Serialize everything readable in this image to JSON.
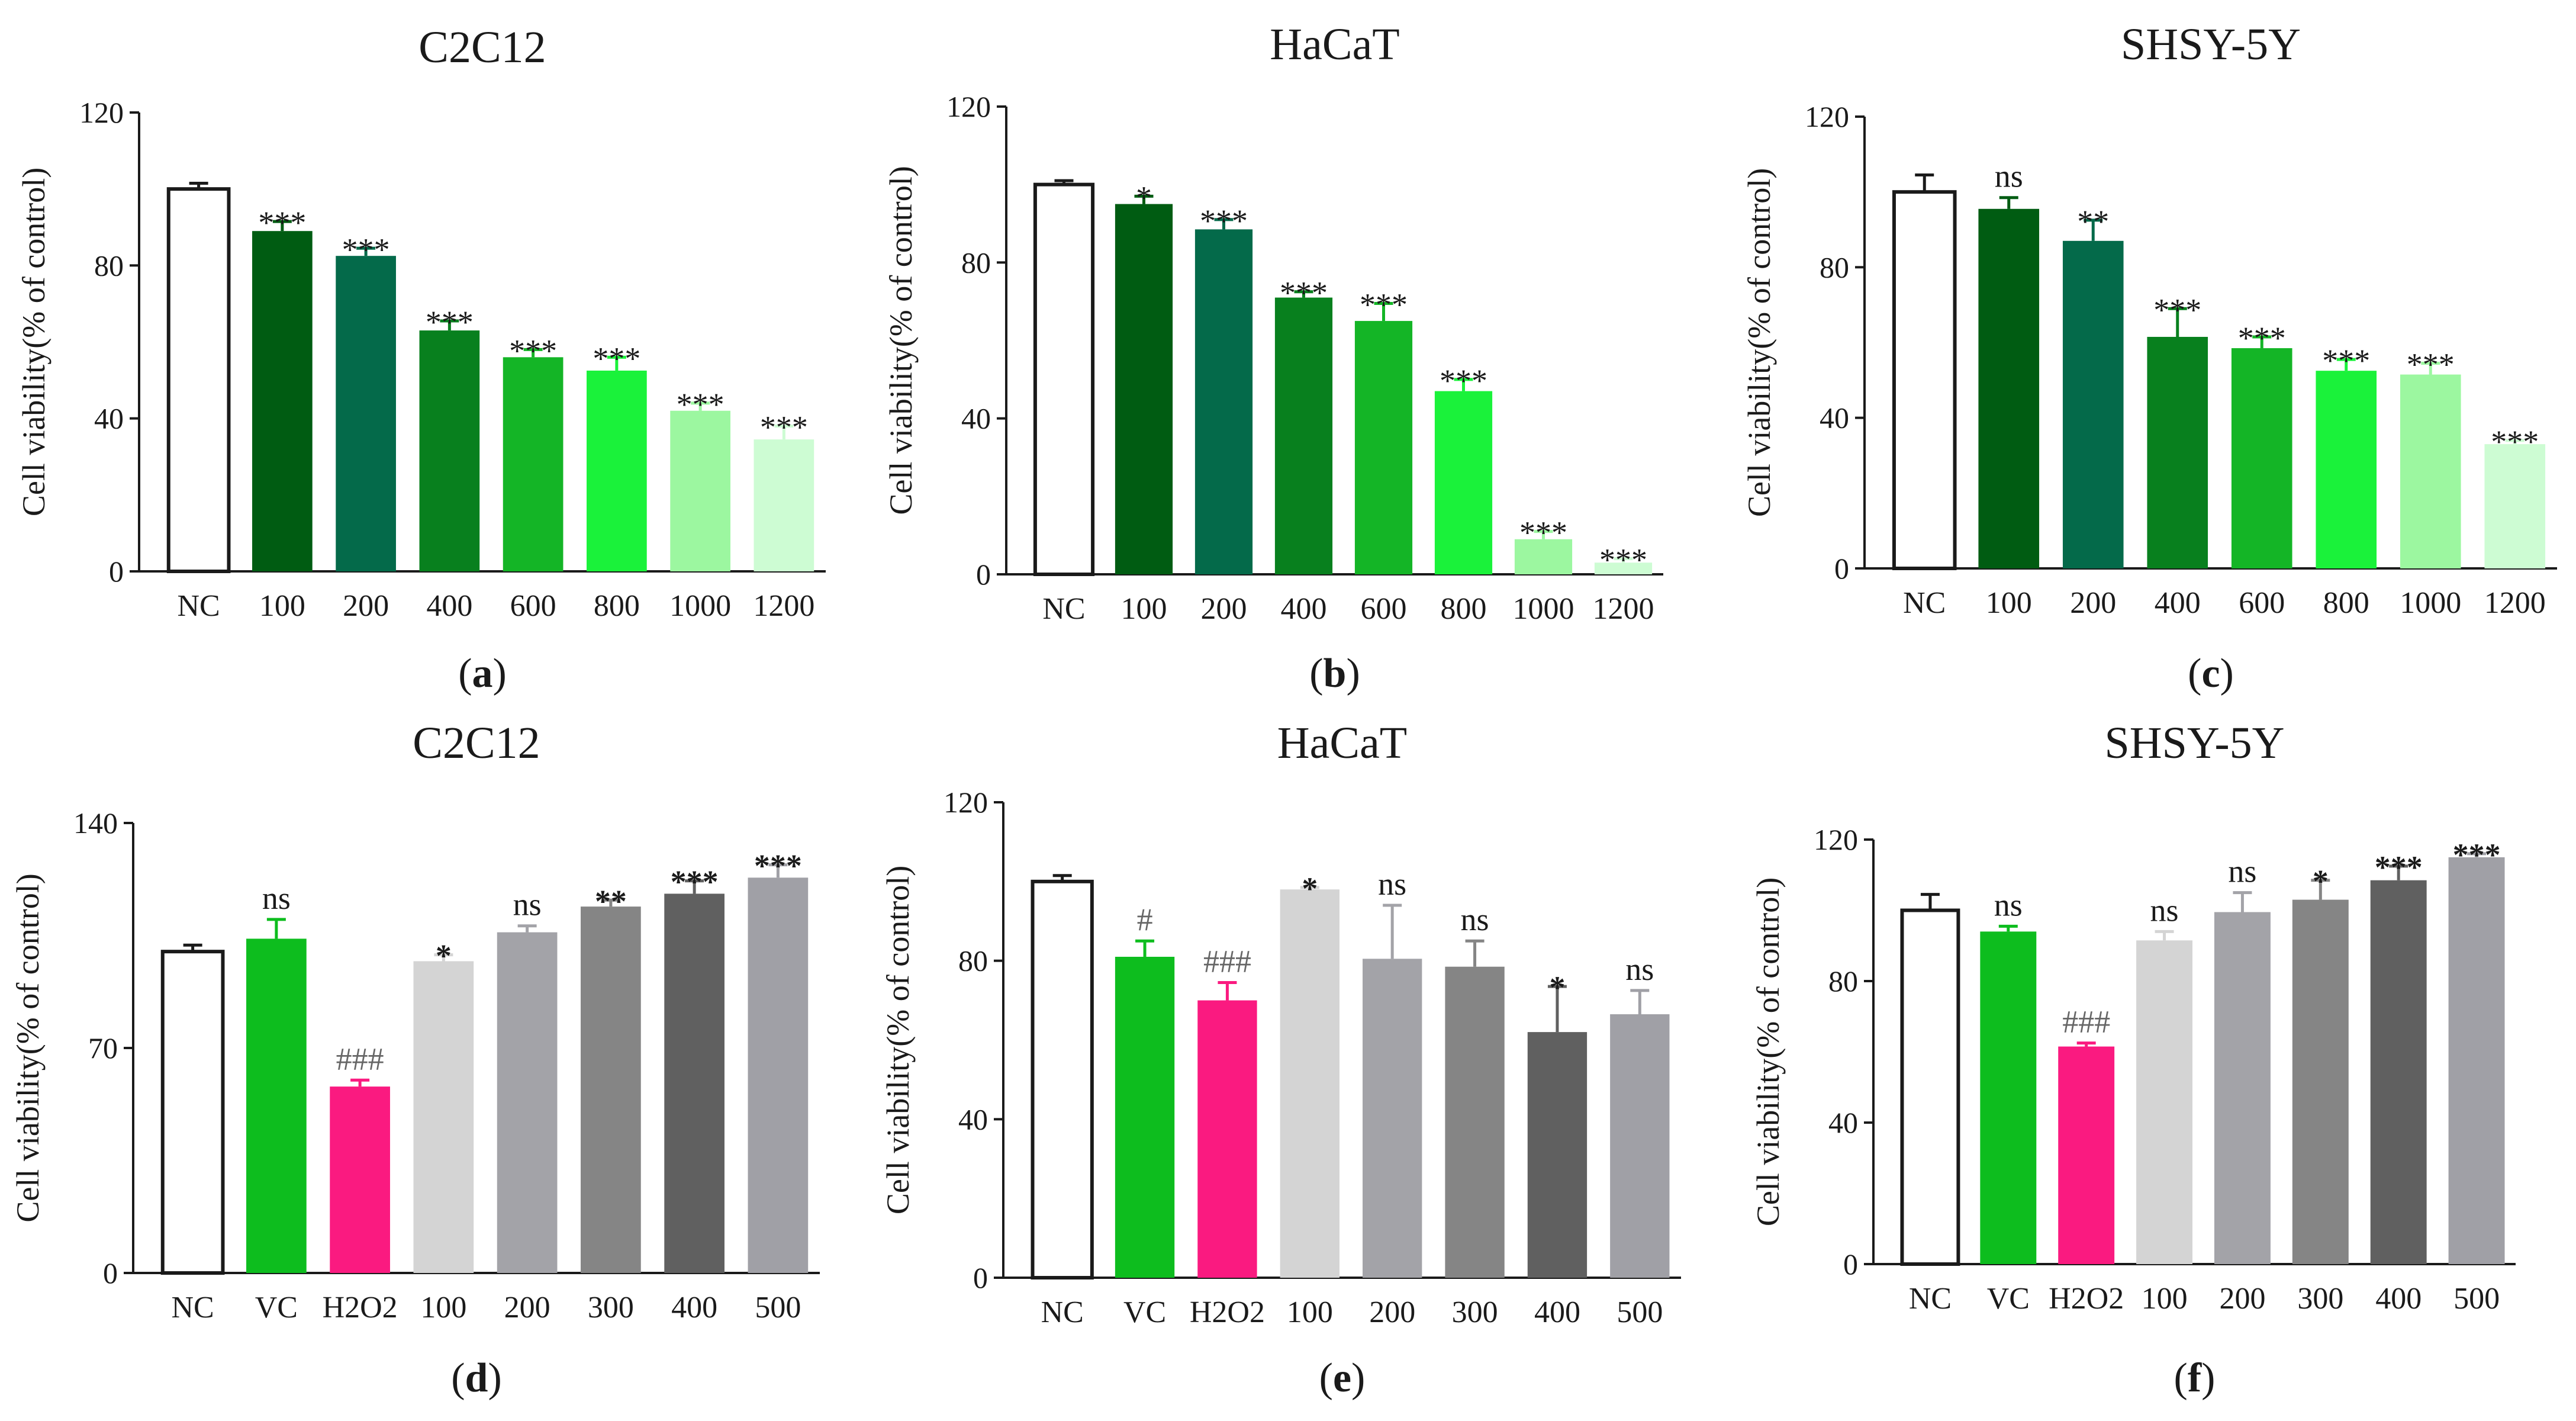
{
  "chart_data": [
    {
      "type": "bar",
      "panel": "a",
      "title": "C2C12",
      "ylabel": "Cell viability(% of control)",
      "ylim": [
        0,
        120
      ],
      "yticks": [
        0,
        40,
        80,
        120
      ],
      "categories": [
        "NC",
        "100",
        "200",
        "400",
        "600",
        "800",
        "1000",
        "1200"
      ],
      "values": [
        100,
        89,
        82.5,
        63,
        56,
        52.5,
        42,
        34.5
      ],
      "errors": [
        1.5,
        2.5,
        2,
        2.5,
        2,
        3.5,
        2,
        3.5
      ],
      "annotations": [
        "",
        "***",
        "***",
        "***",
        "***",
        "***",
        "***",
        "***"
      ],
      "colors": [
        "#ffffff",
        "#005c12",
        "#046a4a",
        "#08801e",
        "#14b526",
        "#1af23a",
        "#9cf7a0",
        "#cdfcd3"
      ]
    },
    {
      "type": "bar",
      "panel": "b",
      "title": "HaCaT",
      "ylabel": "Cell viability(% of control)",
      "ylim": [
        0,
        120
      ],
      "yticks": [
        0,
        40,
        80,
        120
      ],
      "categories": [
        "NC",
        "100",
        "200",
        "400",
        "600",
        "800",
        "1000",
        "1200"
      ],
      "values": [
        100,
        95,
        88.5,
        71,
        65,
        47,
        9,
        3
      ],
      "errors": [
        1,
        2,
        2.5,
        1.5,
        4.5,
        3,
        2,
        1
      ],
      "annotations": [
        "",
        "*",
        "***",
        "***",
        "***",
        "***",
        "***",
        "***"
      ],
      "colors": [
        "#ffffff",
        "#005c12",
        "#046a4a",
        "#08801e",
        "#14b526",
        "#1af23a",
        "#9cf7a0",
        "#cdfcd3"
      ]
    },
    {
      "type": "bar",
      "panel": "c",
      "title": "SHSY-5Y",
      "ylabel": "Cell viability(% of control)",
      "ylim": [
        0,
        120
      ],
      "yticks": [
        0,
        40,
        80,
        120
      ],
      "categories": [
        "NC",
        "100",
        "200",
        "400",
        "600",
        "800",
        "1000",
        "1200"
      ],
      "values": [
        100,
        95.5,
        87,
        61.5,
        58.5,
        52.5,
        51.5,
        33
      ],
      "errors": [
        4.5,
        3,
        5.5,
        7.5,
        3,
        3,
        3,
        1
      ],
      "annotations": [
        "",
        "ns",
        "**",
        "***",
        "***",
        "***",
        "***",
        "***"
      ],
      "colors": [
        "#ffffff",
        "#005c12",
        "#046a4a",
        "#08801e",
        "#14b526",
        "#1af23a",
        "#9cf7a0",
        "#cdfcd3"
      ]
    },
    {
      "type": "bar",
      "panel": "d",
      "title": "C2C12",
      "ylabel": "Cell viability(% of control)",
      "ylim": [
        0,
        140
      ],
      "yticks": [
        0,
        70,
        140
      ],
      "categories": [
        "NC",
        "VC",
        "H2O2",
        "100",
        "200",
        "300",
        "400",
        "500"
      ],
      "values": [
        100,
        104,
        58,
        97,
        106,
        114,
        118,
        123
      ],
      "errors": [
        2,
        6,
        2,
        2,
        2,
        2,
        4,
        4
      ],
      "annotations": [
        "",
        "ns",
        "###",
        "*",
        "ns",
        "**",
        "***",
        "***"
      ],
      "colors": [
        "#ffffff",
        "#0dbd1e",
        "#fa1a80",
        "#d4d4d4",
        "#a3a3a8",
        "#858585",
        "#606060",
        "#a0a0a6"
      ]
    },
    {
      "type": "bar",
      "panel": "e",
      "title": "HaCaT",
      "ylabel": "Cell viability(% of control)",
      "ylim": [
        0,
        120
      ],
      "yticks": [
        0,
        40,
        80,
        120
      ],
      "categories": [
        "NC",
        "VC",
        "H2O2",
        "100",
        "200",
        "300",
        "400",
        "500"
      ],
      "values": [
        100,
        81,
        70,
        98,
        80.5,
        78.5,
        62,
        66.5
      ],
      "errors": [
        1.5,
        4,
        4.5,
        0.5,
        13.5,
        6.5,
        11.5,
        6
      ],
      "annotations": [
        "",
        "#",
        "###",
        "*",
        "ns",
        "ns",
        "*",
        "ns"
      ],
      "colors": [
        "#ffffff",
        "#0dbd1e",
        "#fa1a80",
        "#d4d4d4",
        "#a3a3a8",
        "#858585",
        "#606060",
        "#a0a0a6"
      ]
    },
    {
      "type": "bar",
      "panel": "f",
      "title": "SHSY-5Y",
      "ylabel": "Cell viability(% of control)",
      "ylim": [
        0,
        120
      ],
      "yticks": [
        0,
        40,
        80,
        120
      ],
      "categories": [
        "NC",
        "VC",
        "H2O2",
        "100",
        "200",
        "300",
        "400",
        "500"
      ],
      "values": [
        100,
        94,
        61.5,
        91.5,
        99.5,
        103,
        108.5,
        115
      ],
      "errors": [
        4.5,
        1.5,
        1,
        2.5,
        5.5,
        5.5,
        4,
        1
      ],
      "annotations": [
        "",
        "ns",
        "###",
        "ns",
        "ns",
        "*",
        "***",
        "***"
      ],
      "colors": [
        "#ffffff",
        "#0dbd1e",
        "#fa1a80",
        "#d4d4d4",
        "#a3a3a8",
        "#858585",
        "#606060",
        "#a0a0a6"
      ]
    }
  ]
}
